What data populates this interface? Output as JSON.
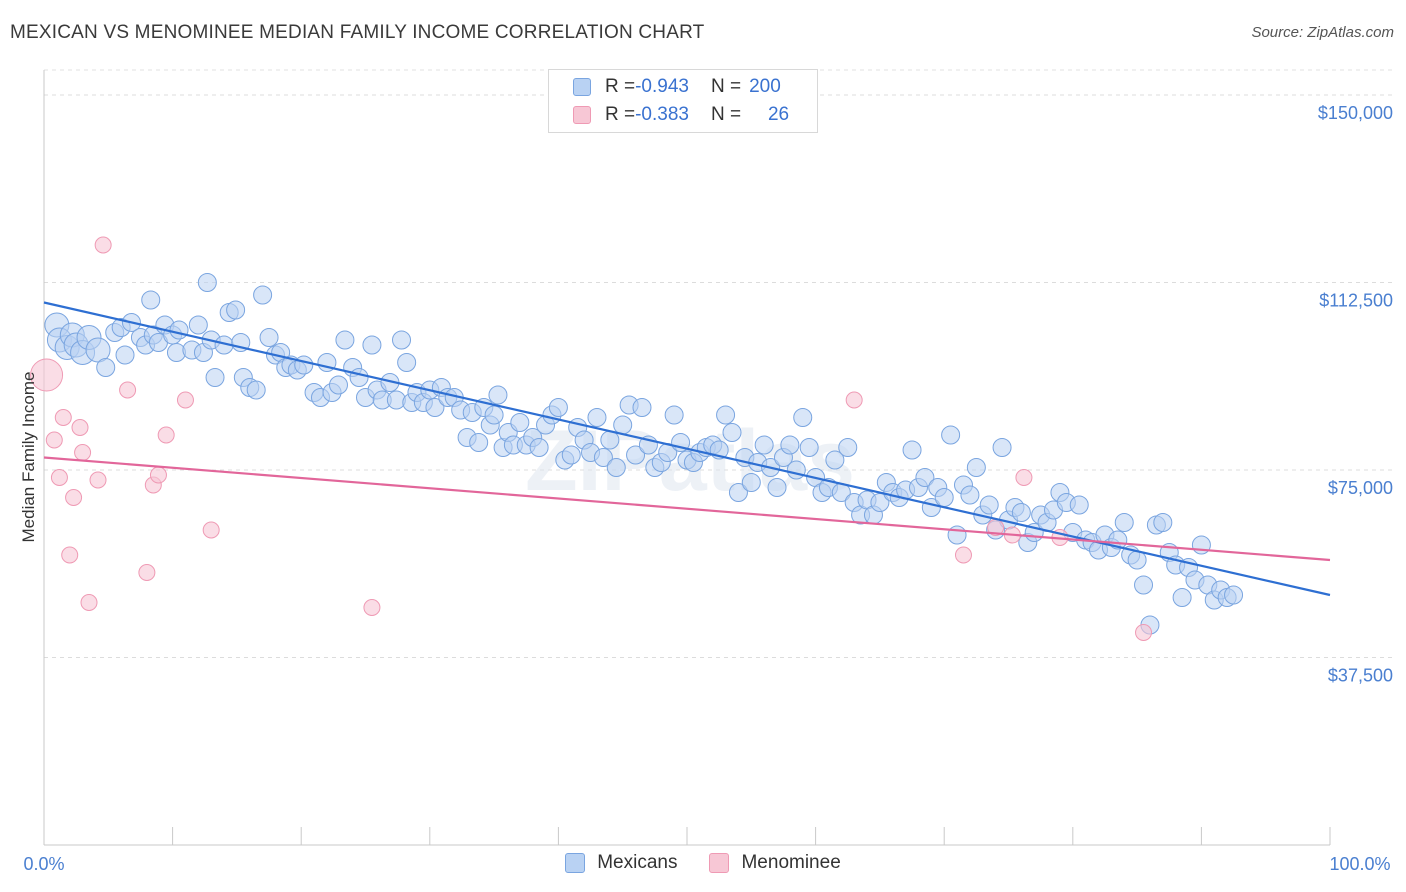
{
  "title": "MEXICAN VS MENOMINEE MEDIAN FAMILY INCOME CORRELATION CHART",
  "source": "Source: ZipAtlas.com",
  "watermark": "ZIPatlas",
  "colors": {
    "blue": "#4a7fd0",
    "blue_fill": "#b9d2f3",
    "blue_stroke": "#7aa5e0",
    "blue_line": "#2e6fd2",
    "pink_fill": "#f7c7d5",
    "pink_stroke": "#ef9ab4",
    "pink_line": "#e2669a"
  },
  "legend": {
    "rows": [
      {
        "r_label": "R = ",
        "r_value": "-0.943",
        "n_label": "N = ",
        "n_value": "200"
      },
      {
        "r_label": "R = ",
        "r_value": "-0.383",
        "n_label": "N = ",
        "n_value": "26"
      }
    ]
  },
  "bottom_legend": [
    "Mexicans",
    "Menominee"
  ],
  "chart_data": {
    "type": "scatter",
    "title": "MEXICAN VS MENOMINEE MEDIAN FAMILY INCOME CORRELATION CHART",
    "xlabel": "",
    "ylabel": "Median Family Income",
    "xlim": [
      0,
      100
    ],
    "ylim": [
      0,
      155000
    ],
    "x_tick_labels": [
      "0.0%",
      "100.0%"
    ],
    "y_ticks": [
      37500,
      75000,
      112500,
      150000
    ],
    "y_tick_labels": [
      "$37,500",
      "$75,000",
      "$112,500",
      "$150,000"
    ],
    "grid": "horizontal dashed",
    "series": [
      {
        "name": "Mexicans",
        "color": "#b9d2f3",
        "trend": {
          "x": [
            0,
            100
          ],
          "y": [
            108500,
            50000
          ]
        },
        "points": [
          [
            1.0,
            104000
          ],
          [
            1.2,
            101000
          ],
          [
            1.8,
            99500
          ],
          [
            2.2,
            102000
          ],
          [
            2.5,
            100000
          ],
          [
            3.0,
            98500
          ],
          [
            3.5,
            101500
          ],
          [
            4.2,
            99000
          ],
          [
            4.8,
            95500
          ],
          [
            5.5,
            102500
          ],
          [
            6.0,
            103500
          ],
          [
            6.3,
            98000
          ],
          [
            6.8,
            104500
          ],
          [
            7.5,
            101500
          ],
          [
            7.9,
            100000
          ],
          [
            8.3,
            109000
          ],
          [
            8.5,
            102000
          ],
          [
            8.9,
            100500
          ],
          [
            9.4,
            104000
          ],
          [
            10.0,
            102000
          ],
          [
            10.3,
            98500
          ],
          [
            10.5,
            103000
          ],
          [
            11.5,
            99000
          ],
          [
            12.0,
            104000
          ],
          [
            12.4,
            98500
          ],
          [
            12.7,
            112500
          ],
          [
            13.0,
            101000
          ],
          [
            13.3,
            93500
          ],
          [
            14.0,
            100000
          ],
          [
            14.4,
            106500
          ],
          [
            14.9,
            107000
          ],
          [
            15.3,
            100500
          ],
          [
            15.5,
            93500
          ],
          [
            16.0,
            91500
          ],
          [
            16.5,
            91000
          ],
          [
            17.0,
            110000
          ],
          [
            17.5,
            101500
          ],
          [
            18.0,
            98000
          ],
          [
            18.4,
            98500
          ],
          [
            18.8,
            95500
          ],
          [
            19.2,
            96000
          ],
          [
            19.7,
            95000
          ],
          [
            20.2,
            96000
          ],
          [
            21.0,
            90500
          ],
          [
            21.5,
            89500
          ],
          [
            22.0,
            96500
          ],
          [
            22.4,
            90500
          ],
          [
            22.9,
            92000
          ],
          [
            23.4,
            101000
          ],
          [
            24.0,
            95500
          ],
          [
            24.5,
            93500
          ],
          [
            25.0,
            89500
          ],
          [
            25.5,
            100000
          ],
          [
            25.9,
            91000
          ],
          [
            26.3,
            89000
          ],
          [
            26.9,
            92500
          ],
          [
            27.4,
            89000
          ],
          [
            27.8,
            101000
          ],
          [
            28.2,
            96500
          ],
          [
            28.6,
            88500
          ],
          [
            29.0,
            90500
          ],
          [
            29.5,
            88500
          ],
          [
            30.0,
            91000
          ],
          [
            30.4,
            87500
          ],
          [
            30.9,
            91500
          ],
          [
            31.4,
            89500
          ],
          [
            31.9,
            89500
          ],
          [
            32.4,
            87000
          ],
          [
            32.9,
            81500
          ],
          [
            33.3,
            86500
          ],
          [
            33.8,
            80500
          ],
          [
            34.2,
            87500
          ],
          [
            34.7,
            84000
          ],
          [
            35.0,
            86000
          ],
          [
            35.3,
            90000
          ],
          [
            35.7,
            79500
          ],
          [
            36.1,
            82500
          ],
          [
            36.5,
            80000
          ],
          [
            37.0,
            84500
          ],
          [
            37.5,
            80000
          ],
          [
            38.0,
            81500
          ],
          [
            38.5,
            79500
          ],
          [
            39.0,
            84000
          ],
          [
            39.5,
            86000
          ],
          [
            40.0,
            87500
          ],
          [
            40.5,
            77000
          ],
          [
            41.0,
            78000
          ],
          [
            41.5,
            83500
          ],
          [
            42.0,
            81000
          ],
          [
            42.5,
            78500
          ],
          [
            43.0,
            85500
          ],
          [
            43.5,
            77500
          ],
          [
            44.0,
            81000
          ],
          [
            44.5,
            75500
          ],
          [
            45.0,
            84000
          ],
          [
            45.5,
            88000
          ],
          [
            46.0,
            78000
          ],
          [
            46.5,
            87500
          ],
          [
            47.0,
            80000
          ],
          [
            47.5,
            75500
          ],
          [
            48.0,
            76500
          ],
          [
            48.5,
            78500
          ],
          [
            49.0,
            86000
          ],
          [
            49.5,
            80500
          ],
          [
            50.0,
            77000
          ],
          [
            50.5,
            76500
          ],
          [
            51.0,
            78500
          ],
          [
            51.5,
            79500
          ],
          [
            52.0,
            80000
          ],
          [
            52.5,
            79000
          ],
          [
            53.0,
            86000
          ],
          [
            53.5,
            82500
          ],
          [
            54.0,
            70500
          ],
          [
            54.5,
            77500
          ],
          [
            55.0,
            72500
          ],
          [
            55.5,
            76500
          ],
          [
            56.0,
            80000
          ],
          [
            56.5,
            75500
          ],
          [
            57.0,
            71500
          ],
          [
            57.5,
            77500
          ],
          [
            58.0,
            80000
          ],
          [
            58.5,
            75000
          ],
          [
            59.0,
            85500
          ],
          [
            59.5,
            79500
          ],
          [
            60.0,
            73500
          ],
          [
            60.5,
            70500
          ],
          [
            61.0,
            71500
          ],
          [
            61.5,
            77000
          ],
          [
            62.0,
            70500
          ],
          [
            62.5,
            79500
          ],
          [
            63.0,
            68500
          ],
          [
            63.5,
            66000
          ],
          [
            64.0,
            69000
          ],
          [
            64.5,
            66000
          ],
          [
            65.0,
            68500
          ],
          [
            65.5,
            72500
          ],
          [
            66.0,
            70500
          ],
          [
            66.5,
            69500
          ],
          [
            67.0,
            71000
          ],
          [
            67.5,
            79000
          ],
          [
            68.0,
            71500
          ],
          [
            68.5,
            73500
          ],
          [
            69.0,
            67500
          ],
          [
            69.5,
            71500
          ],
          [
            70.0,
            69500
          ],
          [
            70.5,
            82000
          ],
          [
            71.0,
            62000
          ],
          [
            71.5,
            72000
          ],
          [
            72.0,
            70000
          ],
          [
            72.5,
            75500
          ],
          [
            73.0,
            66000
          ],
          [
            73.5,
            68000
          ],
          [
            74.0,
            63000
          ],
          [
            74.5,
            79500
          ],
          [
            75.0,
            65000
          ],
          [
            75.5,
            67500
          ],
          [
            76.0,
            66500
          ],
          [
            76.5,
            60500
          ],
          [
            77.0,
            62500
          ],
          [
            77.5,
            66000
          ],
          [
            78.0,
            64500
          ],
          [
            78.5,
            67000
          ],
          [
            79.0,
            70500
          ],
          [
            79.5,
            68500
          ],
          [
            80.0,
            62500
          ],
          [
            80.5,
            68000
          ],
          [
            81.0,
            61000
          ],
          [
            81.5,
            60500
          ],
          [
            82.0,
            59000
          ],
          [
            82.5,
            62000
          ],
          [
            83.0,
            59500
          ],
          [
            83.5,
            61000
          ],
          [
            84.0,
            64500
          ],
          [
            84.5,
            58000
          ],
          [
            85.0,
            57000
          ],
          [
            85.5,
            52000
          ],
          [
            86.0,
            44000
          ],
          [
            86.5,
            64000
          ],
          [
            87.0,
            64500
          ],
          [
            87.5,
            58500
          ],
          [
            88.0,
            56000
          ],
          [
            88.5,
            49500
          ],
          [
            89.0,
            55500
          ],
          [
            89.5,
            53000
          ],
          [
            90.0,
            60000
          ],
          [
            90.5,
            52000
          ],
          [
            91.0,
            49000
          ],
          [
            91.5,
            51000
          ],
          [
            92.0,
            49500
          ],
          [
            92.5,
            50000
          ]
        ]
      },
      {
        "name": "Menominee",
        "color": "#f7c7d5",
        "trend": {
          "x": [
            0,
            100
          ],
          "y": [
            77500,
            57000
          ]
        },
        "points": [
          [
            0.2,
            94000
          ],
          [
            0.8,
            81000
          ],
          [
            1.2,
            73500
          ],
          [
            1.5,
            85500
          ],
          [
            2.0,
            58000
          ],
          [
            2.3,
            69500
          ],
          [
            2.8,
            83500
          ],
          [
            3.0,
            78500
          ],
          [
            3.5,
            48500
          ],
          [
            4.2,
            73000
          ],
          [
            4.6,
            120000
          ],
          [
            6.5,
            91000
          ],
          [
            8.0,
            54500
          ],
          [
            8.5,
            72000
          ],
          [
            8.9,
            74000
          ],
          [
            9.5,
            82000
          ],
          [
            11.0,
            89000
          ],
          [
            13.0,
            63000
          ],
          [
            25.5,
            47500
          ],
          [
            63.0,
            89000
          ],
          [
            71.5,
            58000
          ],
          [
            74.0,
            63500
          ],
          [
            75.3,
            62000
          ],
          [
            76.2,
            73500
          ],
          [
            79.0,
            61500
          ],
          [
            85.5,
            42500
          ]
        ]
      }
    ]
  }
}
